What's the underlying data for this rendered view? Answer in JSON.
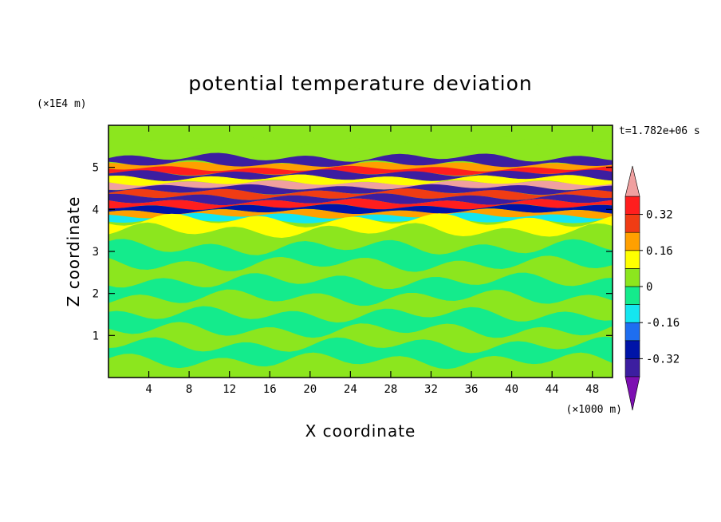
{
  "chart_data": {
    "type": "heatmap",
    "title": "potential temperature deviation",
    "xlabel": "X coordinate",
    "ylabel": "Z coordinate",
    "x_unit": "(×1000 m)",
    "y_unit": "(×1E4 m)",
    "time_label": "t=1.782e+06 s",
    "xlim": [
      0,
      50
    ],
    "ylim": [
      0,
      6
    ],
    "x_ticks": [
      4,
      8,
      12,
      16,
      20,
      24,
      28,
      32,
      36,
      40,
      44,
      48
    ],
    "y_ticks": [
      1,
      2,
      3,
      4,
      5
    ],
    "colorbar": {
      "levels": [
        -0.4,
        -0.32,
        -0.24,
        -0.16,
        -0.08,
        0,
        0.08,
        0.16,
        0.24,
        0.32,
        0.4
      ],
      "labels": [
        "0.32",
        "0.16",
        "0",
        "-0.16",
        "-0.32"
      ],
      "label_values": [
        0.32,
        0.16,
        0,
        -0.16,
        -0.32
      ],
      "colors": [
        "#7d0fb2",
        "#3c1ea0",
        "#0014a8",
        "#1e6ef0",
        "#14e6f0",
        "#14eb8c",
        "#8ce61e",
        "#ffff00",
        "#ffa000",
        "#f03c14",
        "#ff1e1e",
        "#f0a0a0"
      ]
    },
    "bands": [
      {
        "z": 5.75,
        "v": 0.02
      },
      {
        "z": 5.35,
        "v": 0.01
      },
      {
        "z": 5.12,
        "v": -0.36
      },
      {
        "z": 5.02,
        "v": 0.18
      },
      {
        "z": 4.92,
        "v": 0.33
      },
      {
        "z": 4.82,
        "v": -0.34
      },
      {
        "z": 4.68,
        "v": 0.1
      },
      {
        "z": 4.58,
        "v": 0.42
      },
      {
        "z": 4.48,
        "v": -0.38
      },
      {
        "z": 4.36,
        "v": 0.26
      },
      {
        "z": 4.24,
        "v": -0.36
      },
      {
        "z": 4.12,
        "v": 0.36
      },
      {
        "z": 4.0,
        "v": -0.3
      },
      {
        "z": 3.9,
        "v": 0.2
      },
      {
        "z": 3.8,
        "v": -0.12
      },
      {
        "z": 3.68,
        "v": 0.08
      },
      {
        "z": 3.3,
        "v": 0.03
      },
      {
        "z": 2.9,
        "v": -0.02
      },
      {
        "z": 2.5,
        "v": 0.03
      },
      {
        "z": 2.1,
        "v": -0.02
      },
      {
        "z": 1.7,
        "v": 0.03
      },
      {
        "z": 1.3,
        "v": -0.03
      },
      {
        "z": 0.95,
        "v": 0.06
      },
      {
        "z": 0.6,
        "v": -0.02
      },
      {
        "z": 0.2,
        "v": 0.03
      }
    ]
  }
}
